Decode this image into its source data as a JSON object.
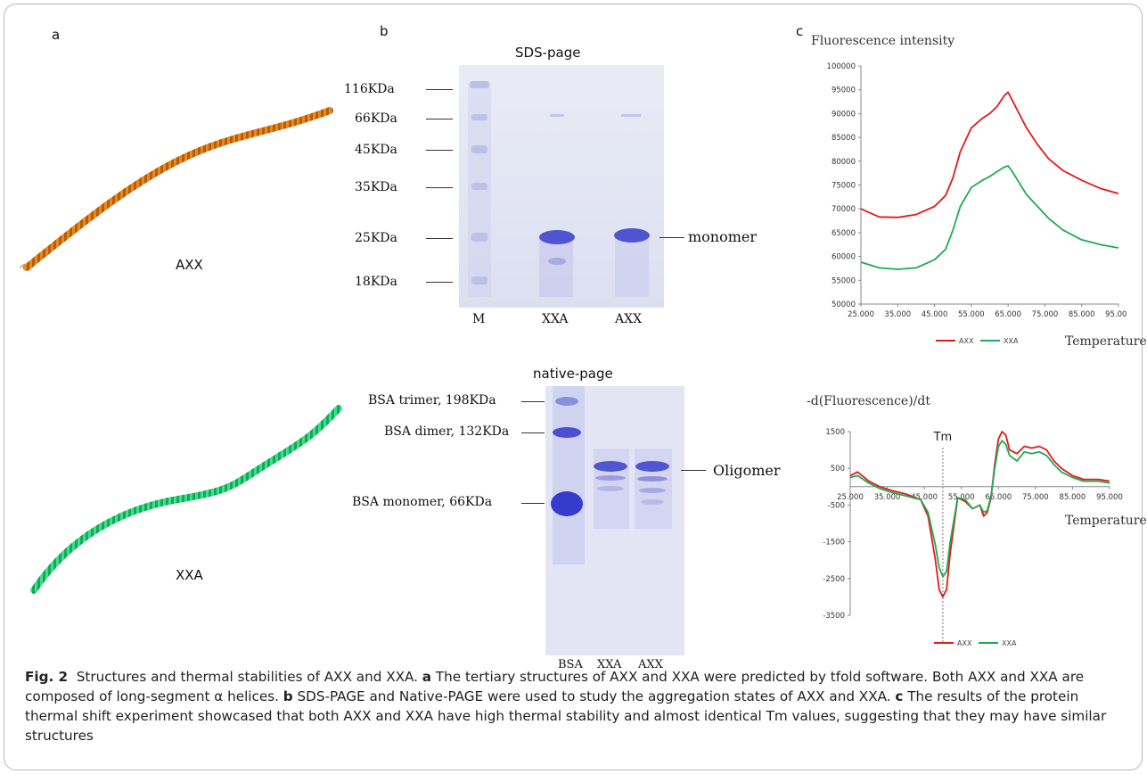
{
  "panel_a": {
    "letter": "a",
    "label_top": "AXX",
    "label_bottom": "XXA",
    "color_top": "#e07a10",
    "color_bottom": "#22d070"
  },
  "panel_b": {
    "letter": "b",
    "sds_title": "SDS-page",
    "sds_markers": [
      "116KDa",
      "66KDa",
      "45KDa",
      "35KDa",
      "25KDa",
      "18KDa"
    ],
    "sds_lanes": [
      "M",
      "XXA",
      "AXX"
    ],
    "sds_side_label": "monomer",
    "native_title": "native-page",
    "native_markers": [
      "BSA trimer, 198KDa",
      "BSA dimer, 132KDa",
      "BSA monomer, 66KDa"
    ],
    "native_lanes": [
      "BSA",
      "XXA",
      "AXX"
    ],
    "native_side_label": "Oligomer"
  },
  "panel_c": {
    "letter": "c",
    "top_ylabel": "Fluorescence intensity",
    "top_xlabel": "Temperature",
    "bottom_ylabel": "-d(Fluorescence)/dt",
    "bottom_xlabel": "Temperature",
    "tm_label": "Tm",
    "series_colors": {
      "AXX": "#e31a1c",
      "XXA": "#1faa55"
    }
  },
  "chart_data": [
    {
      "type": "line",
      "title": "",
      "ylabel": "Fluorescence intensity",
      "xlabel": "Temperature",
      "xlim": [
        25,
        95
      ],
      "ylim": [
        50000,
        100000
      ],
      "x_ticks": [
        "25.000",
        "35.000",
        "45.000",
        "55.000",
        "65.000",
        "75.000",
        "85.000",
        "95.000"
      ],
      "y_ticks": [
        "50000",
        "55000",
        "60000",
        "65000",
        "70000",
        "75000",
        "80000",
        "85000",
        "90000",
        "95000",
        "100000"
      ],
      "legend": "bottom",
      "series": [
        {
          "name": "AXX",
          "x": [
            25,
            30,
            35,
            40,
            45,
            48,
            50,
            52,
            55,
            58,
            60,
            62,
            64,
            65,
            66,
            68,
            70,
            73,
            76,
            80,
            85,
            90,
            95
          ],
          "y": [
            70000,
            68300,
            68200,
            68800,
            70500,
            72800,
            76500,
            82000,
            87000,
            89000,
            90000,
            91500,
            93800,
            94500,
            93000,
            90000,
            87000,
            83500,
            80500,
            78000,
            76000,
            74300,
            73200
          ]
        },
        {
          "name": "XXA",
          "x": [
            25,
            30,
            35,
            40,
            45,
            48,
            50,
            52,
            55,
            58,
            60,
            62,
            64,
            65,
            66,
            68,
            70,
            73,
            76,
            80,
            85,
            90,
            95
          ],
          "y": [
            58800,
            57600,
            57300,
            57600,
            59300,
            61500,
            65500,
            70500,
            74500,
            76000,
            76800,
            77800,
            78800,
            79000,
            78000,
            75500,
            73000,
            70500,
            68000,
            65500,
            63500,
            62500,
            61800
          ]
        }
      ]
    },
    {
      "type": "line",
      "title": "",
      "ylabel": "-d(Fluorescence)/dt",
      "xlabel": "Temperature",
      "xlim": [
        25,
        95
      ],
      "ylim": [
        -3500,
        1500
      ],
      "x_ticks": [
        "25.000",
        "35.000",
        "45.000",
        "55.000",
        "65.000",
        "75.000",
        "85.000",
        "95.000"
      ],
      "y_ticks": [
        "1500",
        "500",
        "-500",
        "-1500",
        "-2500",
        "-3500"
      ],
      "legend": "bottom",
      "annotation": {
        "text": "Tm",
        "x": 50
      },
      "series": [
        {
          "name": "AXX",
          "x": [
            25,
            27,
            30,
            33,
            36,
            40,
            44,
            46,
            48,
            49,
            50,
            51,
            52,
            54,
            56,
            58,
            60,
            61,
            62,
            63,
            64,
            65,
            66,
            67,
            68,
            70,
            72,
            74,
            76,
            78,
            80,
            82,
            85,
            88,
            92,
            95
          ],
          "y": [
            300,
            400,
            150,
            0,
            -100,
            -200,
            -350,
            -800,
            -2000,
            -2800,
            -3000,
            -2800,
            -1800,
            -300,
            -400,
            -600,
            -500,
            -800,
            -700,
            -300,
            600,
            1300,
            1500,
            1400,
            1000,
            900,
            1100,
            1050,
            1100,
            1000,
            700,
            500,
            300,
            200,
            200,
            150
          ]
        },
        {
          "name": "XXA",
          "x": [
            25,
            27,
            30,
            33,
            36,
            40,
            44,
            46,
            48,
            49,
            50,
            51,
            52,
            54,
            56,
            58,
            60,
            61,
            62,
            63,
            64,
            65,
            66,
            67,
            68,
            70,
            72,
            74,
            76,
            78,
            80,
            82,
            85,
            88,
            92,
            95
          ],
          "y": [
            250,
            300,
            100,
            -50,
            -150,
            -250,
            -350,
            -700,
            -1600,
            -2200,
            -2450,
            -2300,
            -1500,
            -300,
            -350,
            -600,
            -500,
            -700,
            -650,
            -250,
            500,
            1100,
            1250,
            1150,
            850,
            700,
            950,
            900,
            950,
            850,
            600,
            400,
            250,
            150,
            150,
            100
          ]
        }
      ]
    }
  ],
  "caption": {
    "fig_label": "Fig. 2",
    "title": "Structures and thermal stabilities of AXX and XXA.",
    "a_letter": "a",
    "a_text": "The tertiary structures of AXX and XXA were predicted by tfold software. Both AXX and XXA are composed of long-segment α helices.",
    "b_letter": "b",
    "b_text": "SDS-PAGE and Native-PAGE were used to study the aggregation states of AXX and XXA.",
    "c_letter": "c",
    "c_text": "The results of the protein thermal shift experiment showcased that both AXX and XXA have high thermal stability and almost identical Tm values, suggesting that they may have similar structures"
  }
}
